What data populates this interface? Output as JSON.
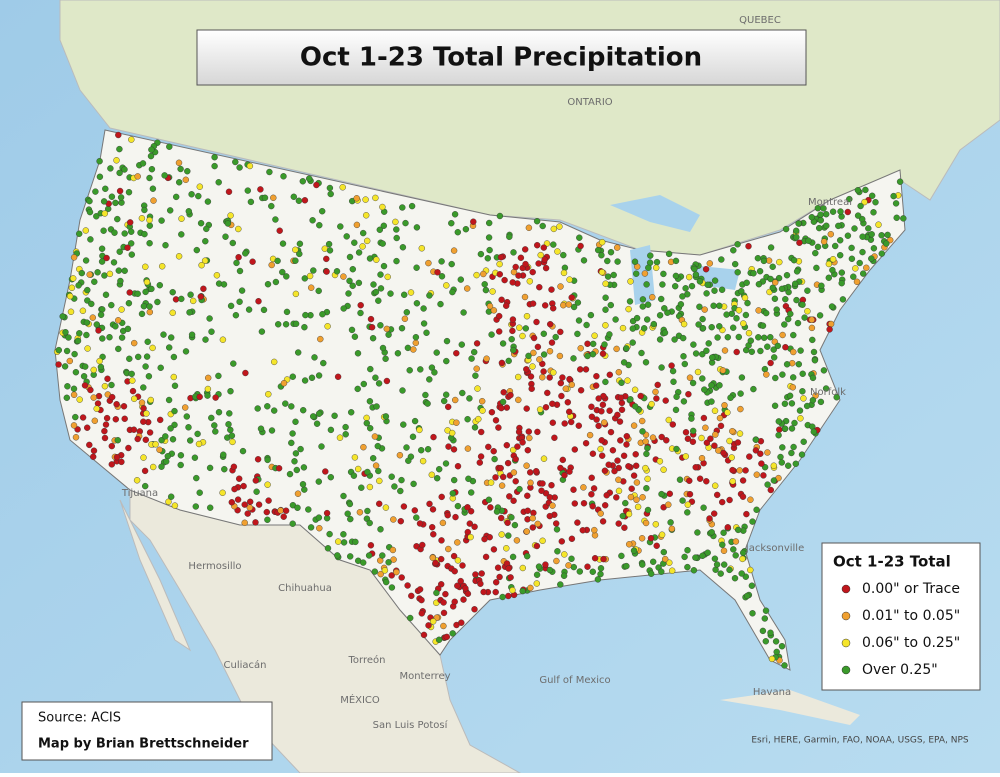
{
  "title": "Oct 1-23 Total Precipitation",
  "legend": {
    "title": "Oct 1-23 Total",
    "items": [
      {
        "label": "0.00\" or Trace",
        "color": "#c0161c"
      },
      {
        "label": "0.01\" to 0.05\"",
        "color": "#f0a030"
      },
      {
        "label": "0.06\" to 0.25\"",
        "color": "#f5e52a"
      },
      {
        "label": "Over 0.25\"",
        "color": "#3a9a2a"
      }
    ]
  },
  "source": "Source: ACIS",
  "credit": "Map by Brian Brettschneider",
  "attribution": "Esri, HERE, Garmin, FAO, NOAA, USGS, EPA, NPS",
  "places": [
    "ONTARIO",
    "QUEBEC",
    "MÉXICO",
    "Gulf of Mexico",
    "Havana",
    "Chihuahua",
    "Hermosillo",
    "Torreón",
    "Monterrey",
    "Culiacán",
    "San Luis Potosí",
    "Tijuana",
    "Jacksonville",
    "Norfolk",
    "Montreal"
  ]
}
